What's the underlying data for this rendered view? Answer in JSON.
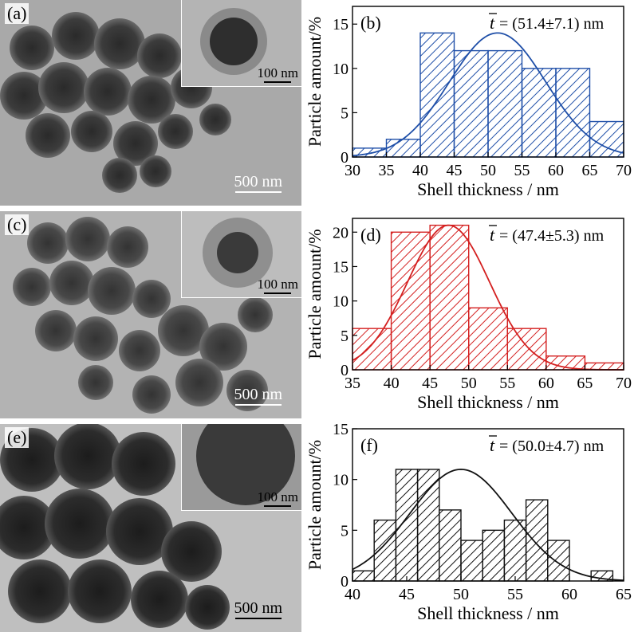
{
  "tem_panels": [
    {
      "label": "(a)",
      "inset_scale": "100 nm",
      "main_scale": "500 nm"
    },
    {
      "label": "(c)",
      "inset_scale": "100 nm",
      "main_scale": "500 nm"
    },
    {
      "label": "(e)",
      "inset_scale": "100 nm",
      "main_scale": "500 nm"
    }
  ],
  "chart_data": [
    {
      "type": "bar",
      "panel_label": "(b)",
      "annotation_symbol": "t",
      "annotation_text": "= (51.4±7.1) nm",
      "xlabel": "Shell thickness / nm",
      "ylabel": "Particle amount/%",
      "xlim": [
        30,
        70
      ],
      "ylim": [
        0,
        17
      ],
      "xticks": [
        30,
        35,
        40,
        45,
        50,
        55,
        60,
        65,
        70
      ],
      "yticks": [
        0,
        5,
        10,
        15
      ],
      "bin_width": 5,
      "bins": [
        30,
        35,
        40,
        45,
        50,
        55,
        60,
        65
      ],
      "values": [
        1,
        2,
        14,
        12,
        12,
        10,
        10,
        4
      ],
      "fit": {
        "type": "gaussian",
        "mean": 51.4,
        "sd": 7.1,
        "peak": 14
      },
      "color": "#1f4fa8"
    },
    {
      "type": "bar",
      "panel_label": "(d)",
      "annotation_symbol": "t",
      "annotation_text": "= (47.4±5.3) nm",
      "xlabel": "Shell thickness / nm",
      "ylabel": "Particle amount/%",
      "xlim": [
        35,
        70
      ],
      "ylim": [
        0,
        22
      ],
      "xticks": [
        35,
        40,
        45,
        50,
        55,
        60,
        65,
        70
      ],
      "yticks": [
        0,
        5,
        10,
        15,
        20
      ],
      "bin_width": 5,
      "bins": [
        35,
        40,
        45,
        50,
        55,
        60,
        65
      ],
      "values": [
        6,
        20,
        21,
        9,
        6,
        2,
        1
      ],
      "fit": {
        "type": "gaussian",
        "mean": 47.4,
        "sd": 5.3,
        "peak": 21
      },
      "color": "#d42020"
    },
    {
      "type": "bar",
      "panel_label": "(f)",
      "annotation_symbol": "t",
      "annotation_text": "= (50.0±4.7) nm",
      "xlabel": "Shell thickness / nm",
      "ylabel": "Particle amount/%",
      "xlim": [
        40,
        65
      ],
      "ylim": [
        0,
        15
      ],
      "xticks": [
        40,
        45,
        50,
        55,
        60,
        65
      ],
      "yticks": [
        0,
        5,
        10,
        15
      ],
      "bin_width": 2,
      "bins": [
        40,
        42,
        44,
        46,
        48,
        50,
        52,
        54,
        56,
        58,
        60,
        62
      ],
      "values": [
        1,
        6,
        11,
        11,
        7,
        4,
        5,
        6,
        8,
        4,
        0,
        1
      ],
      "fit": {
        "type": "gaussian",
        "mean": 50.0,
        "sd": 4.7,
        "peak": 11
      },
      "color": "#111111"
    }
  ]
}
